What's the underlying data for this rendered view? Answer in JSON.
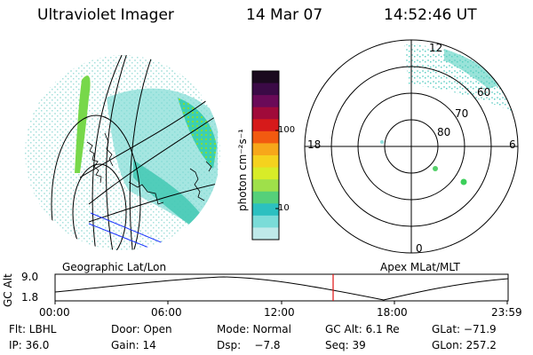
{
  "header": {
    "instrument": "Ultraviolet Imager",
    "date": "14 Mar 07",
    "time": "14:52:46 UT"
  },
  "left_panel": {
    "caption": "Geographic Lat/Lon"
  },
  "right_panel": {
    "caption": "Apex MLat/MLT",
    "mlt_labels": {
      "top": "12",
      "bottom": "0",
      "left": "18",
      "right": "6"
    },
    "mlat_labels": [
      "60",
      "70",
      "80"
    ]
  },
  "colorbar": {
    "label": "photon cm⁻²s⁻¹",
    "ticks": [
      "100",
      "10"
    ],
    "colors": [
      "#1a0a1e",
      "#3b0a46",
      "#6a0a58",
      "#a00a3a",
      "#d61a1a",
      "#f25a10",
      "#f7a71a",
      "#f5d21e",
      "#d8ec28",
      "#9fe04a",
      "#55d07a",
      "#2cc0c0",
      "#7adcd8",
      "#bfeaea"
    ]
  },
  "timeline": {
    "y_label": "GC Alt",
    "y_ticks": [
      "9.0",
      "1.8"
    ],
    "x_ticks": [
      "00:00",
      "06:00",
      "12:00",
      "18:00",
      "23:59"
    ],
    "marker_time": "14:52"
  },
  "footer": {
    "row1": [
      "Flt: LBHL",
      "Door: Open",
      "Mode: Normal",
      "GC Alt: 6.1 Re",
      "GLat: −71.9"
    ],
    "row2": [
      "IP: 36.0",
      "Gain: 14",
      "Dsp:    −7.8",
      "Seq: 39",
      "GLon: 257.2"
    ]
  }
}
